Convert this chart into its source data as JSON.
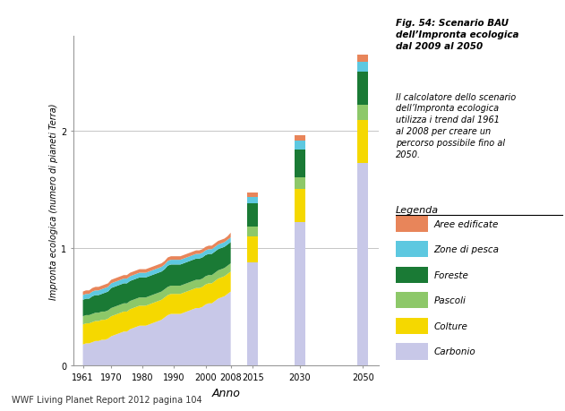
{
  "title_bold": "Fig. 54: Scenario BAU\ndell’Impronta ecologica\ndal 2009 al 2050",
  "title_italic": "Il calcolatore dello scenario\ndell’Impronta ecologica\nutilizza i trend dal 1961\nal 2008 per creare un\npercorso possibile fino al\n2050.",
  "xlabel": "Anno",
  "ylabel": "Impronta ecologica (numero di pianeti Terra)",
  "footer": "WWF Living Planet Report 2012 pagina 104",
  "legend_title": "Legenda",
  "legend_entries": [
    "Aree edificate",
    "Zone di pesca",
    "Foreste",
    "Pascoli",
    "Colture",
    "Carbonio"
  ],
  "colors": {
    "aree_edificate": "#E8855A",
    "zone_di_pesca": "#5DC8E0",
    "foreste": "#1A7A35",
    "pascoli": "#8DC869",
    "colture": "#F5D800",
    "carbonio": "#C8C8E8"
  },
  "history_years": [
    1961,
    1962,
    1963,
    1964,
    1965,
    1966,
    1967,
    1968,
    1969,
    1970,
    1971,
    1972,
    1973,
    1974,
    1975,
    1976,
    1977,
    1978,
    1979,
    1980,
    1981,
    1982,
    1983,
    1984,
    1985,
    1986,
    1987,
    1988,
    1989,
    1990,
    1991,
    1992,
    1993,
    1994,
    1995,
    1996,
    1997,
    1998,
    1999,
    2000,
    2001,
    2002,
    2003,
    2004,
    2005,
    2006,
    2007,
    2008
  ],
  "history_carbonio": [
    0.18,
    0.19,
    0.19,
    0.2,
    0.21,
    0.21,
    0.22,
    0.22,
    0.23,
    0.25,
    0.26,
    0.27,
    0.28,
    0.29,
    0.29,
    0.31,
    0.32,
    0.33,
    0.34,
    0.34,
    0.34,
    0.35,
    0.36,
    0.37,
    0.38,
    0.39,
    0.41,
    0.43,
    0.44,
    0.44,
    0.44,
    0.44,
    0.45,
    0.46,
    0.47,
    0.48,
    0.49,
    0.49,
    0.5,
    0.52,
    0.53,
    0.53,
    0.55,
    0.57,
    0.58,
    0.59,
    0.61,
    0.63
  ],
  "history_colture": [
    0.17,
    0.17,
    0.17,
    0.17,
    0.17,
    0.17,
    0.17,
    0.17,
    0.17,
    0.17,
    0.17,
    0.17,
    0.17,
    0.17,
    0.17,
    0.17,
    0.17,
    0.17,
    0.17,
    0.17,
    0.17,
    0.17,
    0.17,
    0.17,
    0.17,
    0.17,
    0.17,
    0.17,
    0.17,
    0.17,
    0.17,
    0.17,
    0.17,
    0.17,
    0.17,
    0.17,
    0.17,
    0.17,
    0.17,
    0.17,
    0.17,
    0.17,
    0.17,
    0.17,
    0.17,
    0.17,
    0.17,
    0.17
  ],
  "history_pascoli": [
    0.07,
    0.07,
    0.07,
    0.07,
    0.07,
    0.07,
    0.07,
    0.07,
    0.07,
    0.07,
    0.07,
    0.07,
    0.07,
    0.07,
    0.07,
    0.07,
    0.07,
    0.07,
    0.07,
    0.07,
    0.07,
    0.07,
    0.07,
    0.07,
    0.07,
    0.07,
    0.07,
    0.07,
    0.07,
    0.07,
    0.07,
    0.07,
    0.07,
    0.07,
    0.07,
    0.07,
    0.07,
    0.07,
    0.07,
    0.07,
    0.07,
    0.07,
    0.07,
    0.07,
    0.07,
    0.07,
    0.07,
    0.07
  ],
  "history_foreste": [
    0.14,
    0.14,
    0.14,
    0.15,
    0.15,
    0.15,
    0.15,
    0.16,
    0.16,
    0.17,
    0.17,
    0.17,
    0.17,
    0.17,
    0.17,
    0.17,
    0.17,
    0.17,
    0.17,
    0.17,
    0.17,
    0.17,
    0.17,
    0.17,
    0.17,
    0.17,
    0.17,
    0.18,
    0.18,
    0.18,
    0.18,
    0.18,
    0.18,
    0.18,
    0.18,
    0.18,
    0.18,
    0.18,
    0.18,
    0.18,
    0.18,
    0.18,
    0.18,
    0.18,
    0.18,
    0.18,
    0.18,
    0.18
  ],
  "history_zone_pesca": [
    0.04,
    0.04,
    0.04,
    0.04,
    0.04,
    0.04,
    0.04,
    0.04,
    0.04,
    0.04,
    0.04,
    0.04,
    0.04,
    0.04,
    0.04,
    0.04,
    0.04,
    0.04,
    0.04,
    0.04,
    0.04,
    0.04,
    0.04,
    0.04,
    0.04,
    0.04,
    0.04,
    0.04,
    0.04,
    0.04,
    0.04,
    0.04,
    0.04,
    0.04,
    0.04,
    0.04,
    0.04,
    0.04,
    0.04,
    0.04,
    0.04,
    0.04,
    0.04,
    0.04,
    0.04,
    0.04,
    0.04,
    0.04
  ],
  "history_aree_edif": [
    0.03,
    0.03,
    0.03,
    0.03,
    0.03,
    0.03,
    0.03,
    0.03,
    0.03,
    0.03,
    0.03,
    0.03,
    0.03,
    0.03,
    0.03,
    0.03,
    0.03,
    0.03,
    0.03,
    0.03,
    0.03,
    0.03,
    0.03,
    0.03,
    0.03,
    0.03,
    0.03,
    0.03,
    0.03,
    0.03,
    0.03,
    0.03,
    0.03,
    0.03,
    0.03,
    0.03,
    0.03,
    0.03,
    0.03,
    0.03,
    0.03,
    0.03,
    0.03,
    0.03,
    0.03,
    0.03,
    0.03,
    0.04
  ],
  "future_years": [
    2015,
    2030,
    2050
  ],
  "future_carbonio": [
    0.88,
    1.22,
    1.72
  ],
  "future_colture": [
    0.22,
    0.28,
    0.37
  ],
  "future_pascoli": [
    0.08,
    0.1,
    0.13
  ],
  "future_foreste": [
    0.2,
    0.24,
    0.28
  ],
  "future_zone_pesca": [
    0.05,
    0.07,
    0.08
  ],
  "future_aree_edif": [
    0.04,
    0.05,
    0.06
  ],
  "ylim": [
    0,
    2.8
  ],
  "yticks": [
    0,
    1,
    2
  ],
  "xlim_left": 1958,
  "xlim_right": 2055,
  "background_color": "#FFFFFF",
  "grid_color": "#BBBBBB"
}
